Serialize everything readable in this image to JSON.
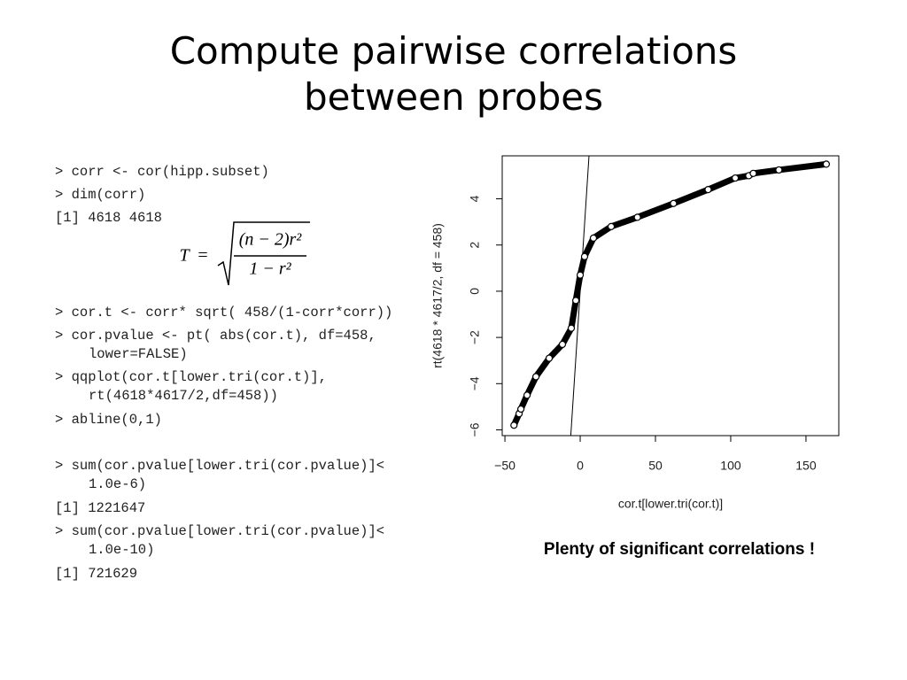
{
  "slide": {
    "title": [
      "Compute pairwise correlations",
      "between probes"
    ],
    "code": [
      [
        "> corr <- cor(hipp.subset)"
      ],
      [
        "> dim(corr)"
      ],
      [
        "[1] 4618 4618"
      ],
      [
        "> cor.t <- corr* sqrt( 458/(1-corr*corr))"
      ],
      [
        "> cor.pvalue <- pt( abs(cor.t), df=458,",
        "lower=FALSE)"
      ],
      [
        "> qqplot(cor.t[lower.tri(cor.t)],",
        "rt(4618*4617/2,df=458))"
      ],
      [
        "> abline(0,1)"
      ],
      [
        "> sum(cor.pvalue[lower.tri(cor.pvalue)]<",
        "1.0e-6)"
      ],
      [
        "[1] 1221647"
      ],
      [
        "> sum(cor.pvalue[lower.tri(cor.pvalue)]<",
        "1.0e-10)"
      ],
      [
        "[1] 721629"
      ]
    ],
    "formula": {
      "lhs": "T",
      "equals": "=",
      "numerator": "(n − 2)r²",
      "denominator": "1 − r²"
    },
    "caption": "Plenty of significant correlations !"
  },
  "chart_data": {
    "type": "scatter",
    "x_label": "cor.t[lower.tri(cor.t)]",
    "y_label": "rt(4618 * 4617/2, df = 458)",
    "x": [
      -44,
      -40.6,
      -39.4,
      -35.3,
      -29.4,
      -20.6,
      -11.8,
      -5.9,
      -2.9,
      0,
      2.9,
      8.8,
      20.6,
      38,
      62,
      85,
      103,
      112,
      115,
      132,
      163.5
    ],
    "values": [
      -5.8,
      -5.3,
      -5.1,
      -4.5,
      -3.7,
      -2.9,
      -2.3,
      -1.6,
      -0.4,
      0.7,
      1.5,
      2.3,
      2.8,
      3.2,
      3.8,
      4.4,
      4.9,
      5.0,
      5.1,
      5.25,
      5.5
    ],
    "color": "#000000",
    "abline": {
      "intercept": 0,
      "slope": 1
    },
    "xlim": [
      -51.8,
      171.8
    ],
    "ylim": [
      -6.25,
      5.86
    ],
    "xticks": [
      {
        "value": -50,
        "label": "−50"
      },
      0,
      50,
      100,
      150
    ],
    "yticks": [
      {
        "value": -6,
        "label": "−6"
      },
      {
        "value": -4,
        "label": "−4"
      },
      {
        "value": -2,
        "label": "−2"
      },
      0,
      2,
      4
    ]
  }
}
